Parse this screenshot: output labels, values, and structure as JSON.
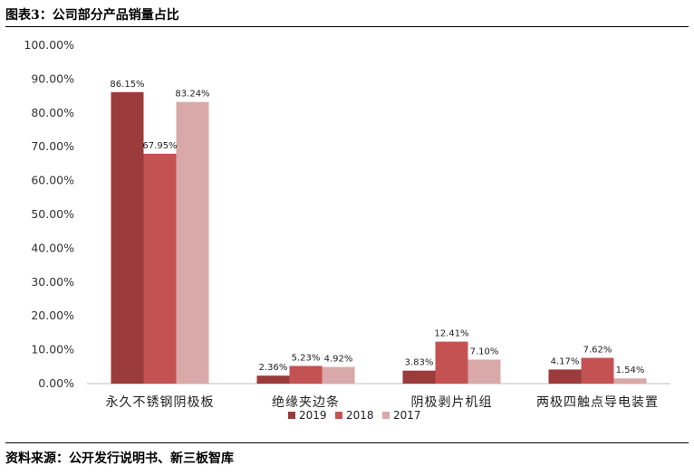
{
  "figure_title": "图表3：公司部分产品销量占比",
  "source_note": "资料来源：公开发行说明书、新三板智库",
  "colors": {
    "2019": "#9b3b3b",
    "2018": "#c55252",
    "2017": "#d9a8a8",
    "axis": "#bfbfbf"
  },
  "chart_data": {
    "type": "bar",
    "categories": [
      "永久不锈钢阴极板",
      "绝缘夹边条",
      "阴极剥片机组",
      "两极四触点导电装置"
    ],
    "series": [
      {
        "name": "2019",
        "values": [
          86.15,
          2.36,
          3.83,
          4.17
        ],
        "labels": [
          "86.15%",
          "2.36%",
          "3.83%",
          "4.17%"
        ]
      },
      {
        "name": "2018",
        "values": [
          67.95,
          5.23,
          12.41,
          7.62
        ],
        "labels": [
          "67.95%",
          "5.23%",
          "12.41%",
          "7.62%"
        ]
      },
      {
        "name": "2017",
        "values": [
          83.24,
          4.92,
          7.1,
          1.54
        ],
        "labels": [
          "83.24%",
          "4.92%",
          "7.10%",
          "1.54%"
        ]
      }
    ],
    "ylim": [
      0,
      100
    ],
    "yticks": [
      "0.00%",
      "10.00%",
      "20.00%",
      "30.00%",
      "40.00%",
      "50.00%",
      "60.00%",
      "70.00%",
      "80.00%",
      "90.00%",
      "100.00%"
    ],
    "grid": false,
    "legend": "bottom"
  }
}
